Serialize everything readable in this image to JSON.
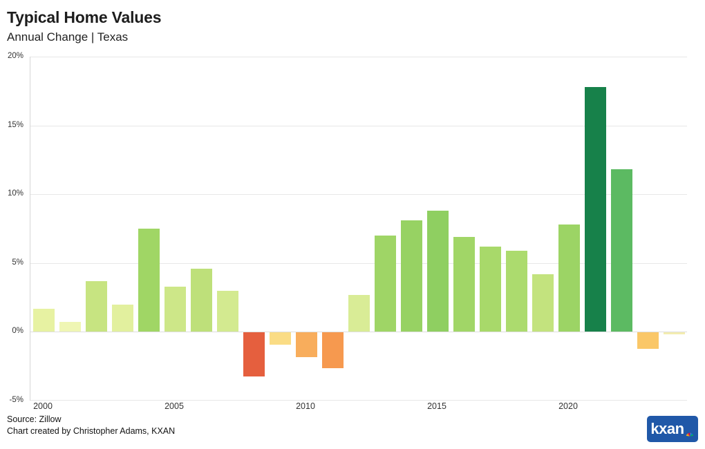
{
  "header": {
    "title": "Typical Home Values",
    "subtitle": "Annual Change | Texas"
  },
  "footer": {
    "source": "Source: Zillow",
    "credit": "Chart created by Christopher Adams, KXAN",
    "logo_text": "kxan"
  },
  "colors": {
    "grid": "#e7e7e7",
    "zero_line": "#dedede",
    "axis_text": "#333333",
    "logo_bg": "#2058a8",
    "peacock": [
      "#fdb913",
      "#f37021",
      "#cc004c",
      "#6460aa",
      "#0089d0",
      "#0db14b"
    ]
  },
  "chart_data": {
    "type": "bar",
    "title": "Typical Home Values",
    "subtitle": "Annual Change | Texas",
    "unit": "%",
    "years": [
      2000,
      2001,
      2002,
      2003,
      2004,
      2005,
      2006,
      2007,
      2008,
      2009,
      2010,
      2011,
      2012,
      2013,
      2014,
      2015,
      2016,
      2017,
      2018,
      2019,
      2020,
      2021,
      2022,
      2023,
      2024
    ],
    "values": [
      1.7,
      0.7,
      3.7,
      2.0,
      7.5,
      3.3,
      4.6,
      3.0,
      -3.2,
      -0.9,
      -1.8,
      -2.6,
      2.7,
      7.0,
      8.1,
      8.8,
      6.9,
      6.2,
      5.9,
      4.2,
      7.8,
      17.8,
      11.8,
      -1.2,
      -0.15
    ],
    "bar_colors": [
      "#e7f2a2",
      "#eff6b4",
      "#c7e481",
      "#e2f09e",
      "#a0d665",
      "#cde788",
      "#bee07a",
      "#d3ea90",
      "#e55f3e",
      "#fadc85",
      "#f8ad5c",
      "#f6994f",
      "#d9ec96",
      "#9fd566",
      "#97d263",
      "#8fcf61",
      "#a1d667",
      "#a8d96a",
      "#acdb6e",
      "#c3e37e",
      "#9cd465",
      "#17814a",
      "#5cba62",
      "#fac768",
      "#f3ecb0"
    ],
    "ylim": [
      -5,
      20
    ],
    "yticks": [
      20,
      15,
      10,
      5,
      0,
      -5
    ],
    "ytick_labels": [
      "20%",
      "15%",
      "10%",
      "5%",
      "0%",
      "-5%"
    ],
    "xticks": [
      2000,
      2005,
      2010,
      2015,
      2020
    ],
    "grid": true,
    "legend": false,
    "xlabel": "",
    "ylabel": ""
  }
}
